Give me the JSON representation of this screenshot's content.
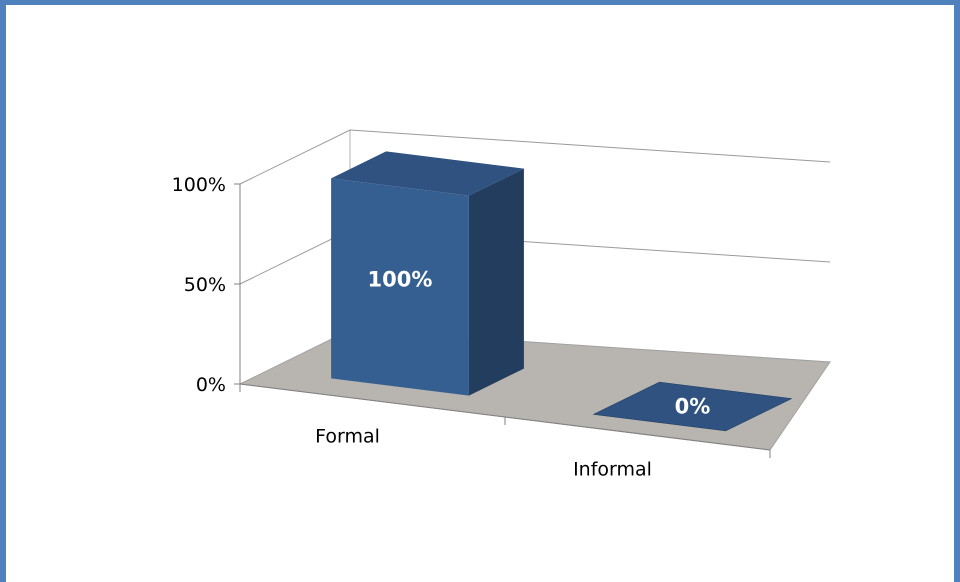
{
  "chart_data": {
    "type": "bar",
    "style": "3d-column",
    "categories": [
      "Formal",
      "Informal"
    ],
    "values": [
      100,
      0
    ],
    "data_labels": [
      "100%",
      "0%"
    ],
    "title": "",
    "xlabel": "",
    "ylabel": "",
    "ylim": [
      0,
      100
    ],
    "y_ticks": [
      "0%",
      "50%",
      "100%"
    ],
    "y_tick_values": [
      0,
      50,
      100
    ],
    "grid": true,
    "legend": "none",
    "colors": {
      "bar_front": "#365f91",
      "bar_top": "#2f5281",
      "bar_side": "#223d5e",
      "floor": "#b8b5b0",
      "frame": "#4f81bd",
      "gridline": "#9a9a9a"
    }
  }
}
